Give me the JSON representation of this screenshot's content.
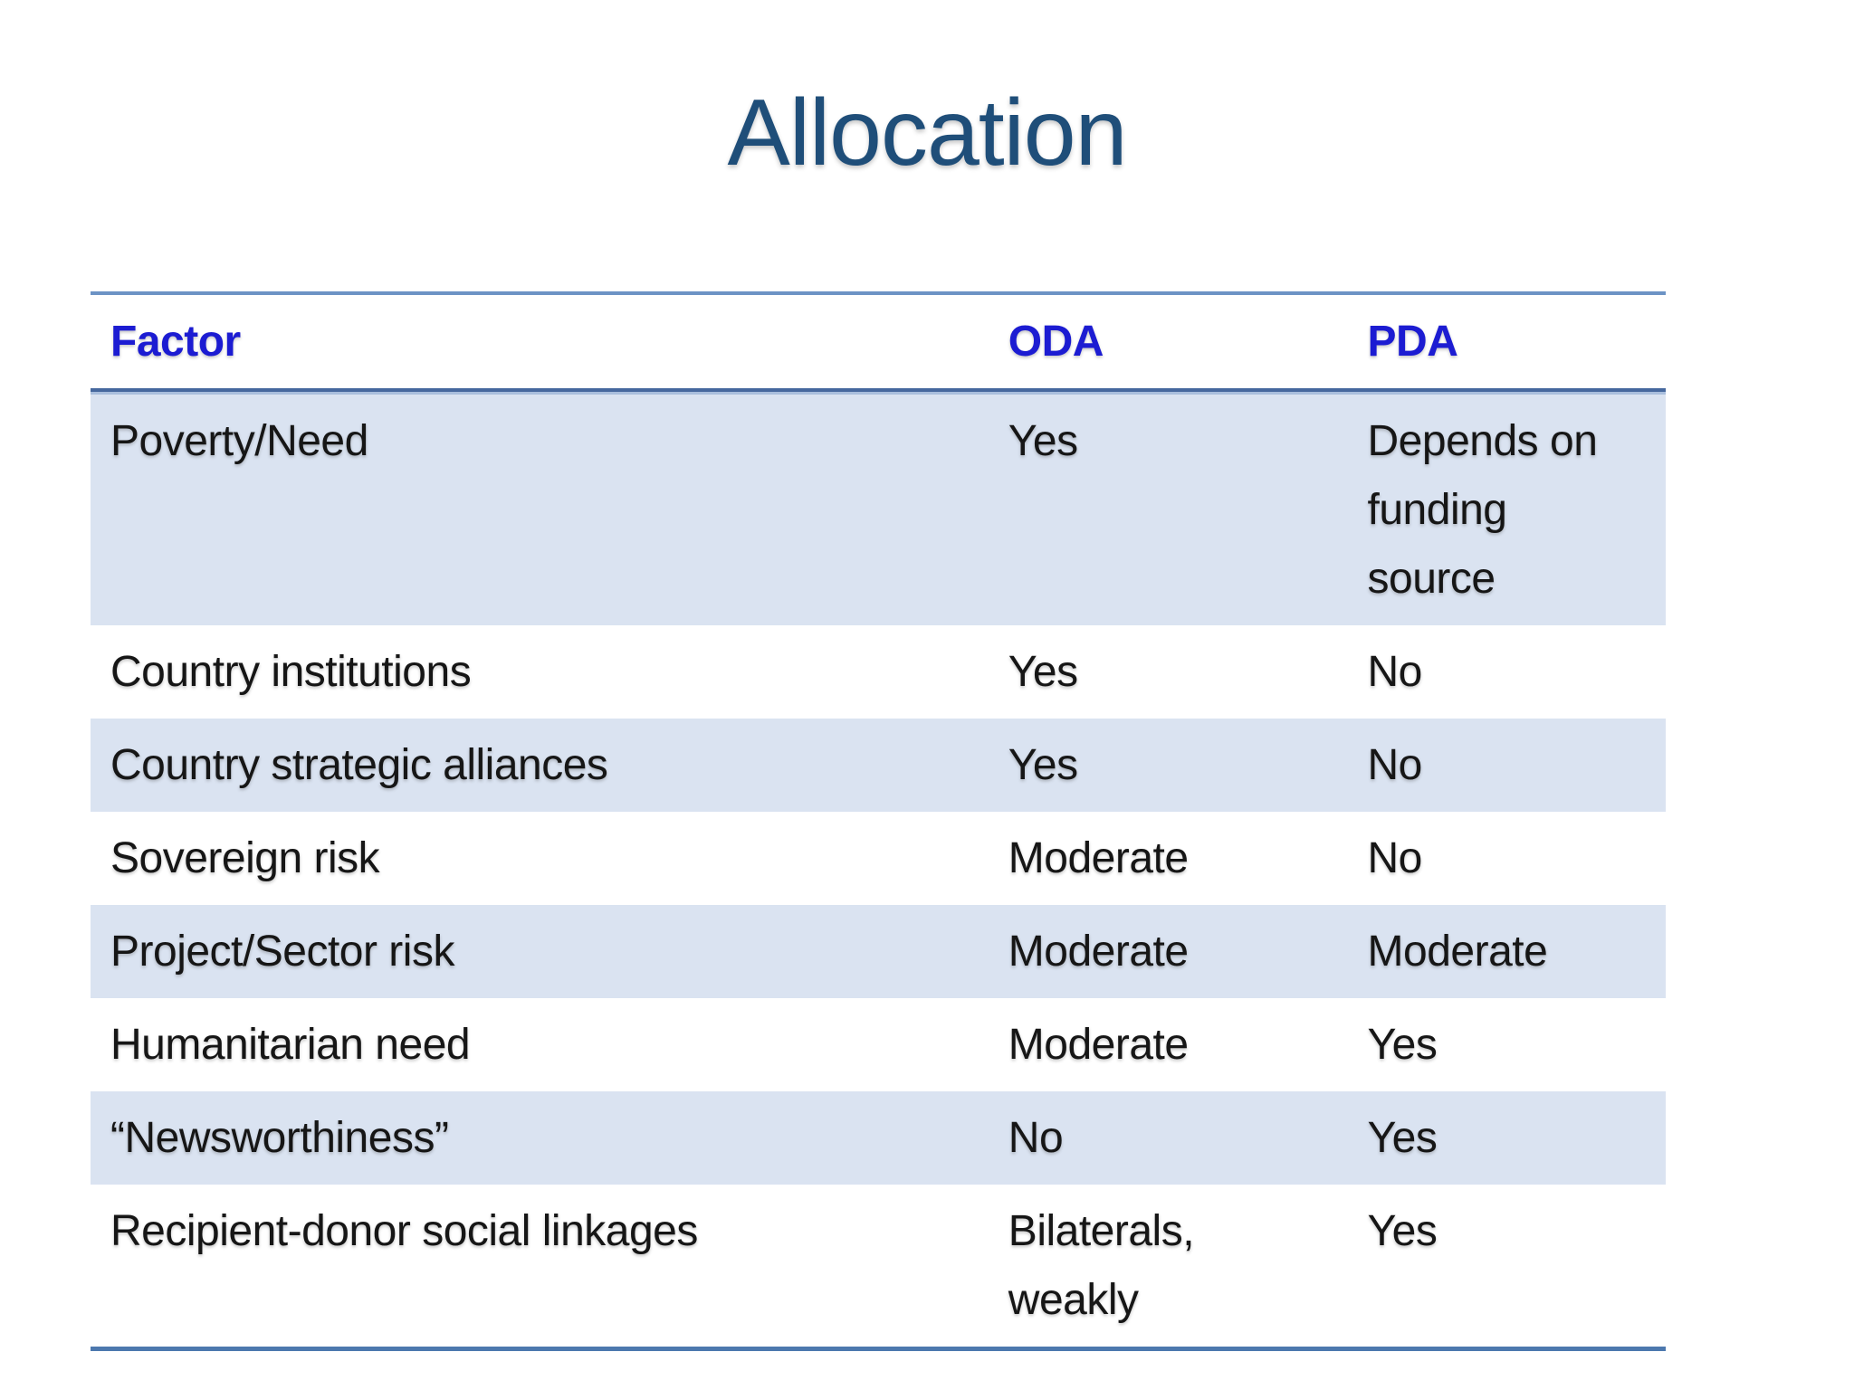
{
  "slide": {
    "title": "Allocation"
  },
  "table": {
    "columns": [
      "Factor",
      "ODA",
      "PDA"
    ],
    "rows": [
      {
        "factor": "Poverty/Need",
        "oda": "Yes",
        "pda": "Depends on funding source"
      },
      {
        "factor": "Country institutions",
        "oda": "Yes",
        "pda": "No"
      },
      {
        "factor": "Country strategic alliances",
        "oda": "Yes",
        "pda": "No"
      },
      {
        "factor": "Sovereign risk",
        "oda": "Moderate",
        "pda": "No"
      },
      {
        "factor": "Project/Sector risk",
        "oda": "Moderate",
        "pda": "Moderate"
      },
      {
        "factor": "Humanitarian need",
        "oda": "Moderate",
        "pda": "Yes"
      },
      {
        "factor": "“Newsworthiness”",
        "oda": "No",
        "pda": "Yes"
      },
      {
        "factor": "Recipient-donor social linkages",
        "oda": "Bilaterals, weakly",
        "pda": "Yes"
      }
    ]
  },
  "colors": {
    "title_color": "#1F4E79",
    "header_text_color": "#1C1CD2",
    "body_text": "#161616",
    "row_shade": "#DAE3F1",
    "border_top": "#6C93C5",
    "border_dark": "#46689E",
    "border_light": "#A9BEDD",
    "border_bottom": "#4C78AE"
  }
}
